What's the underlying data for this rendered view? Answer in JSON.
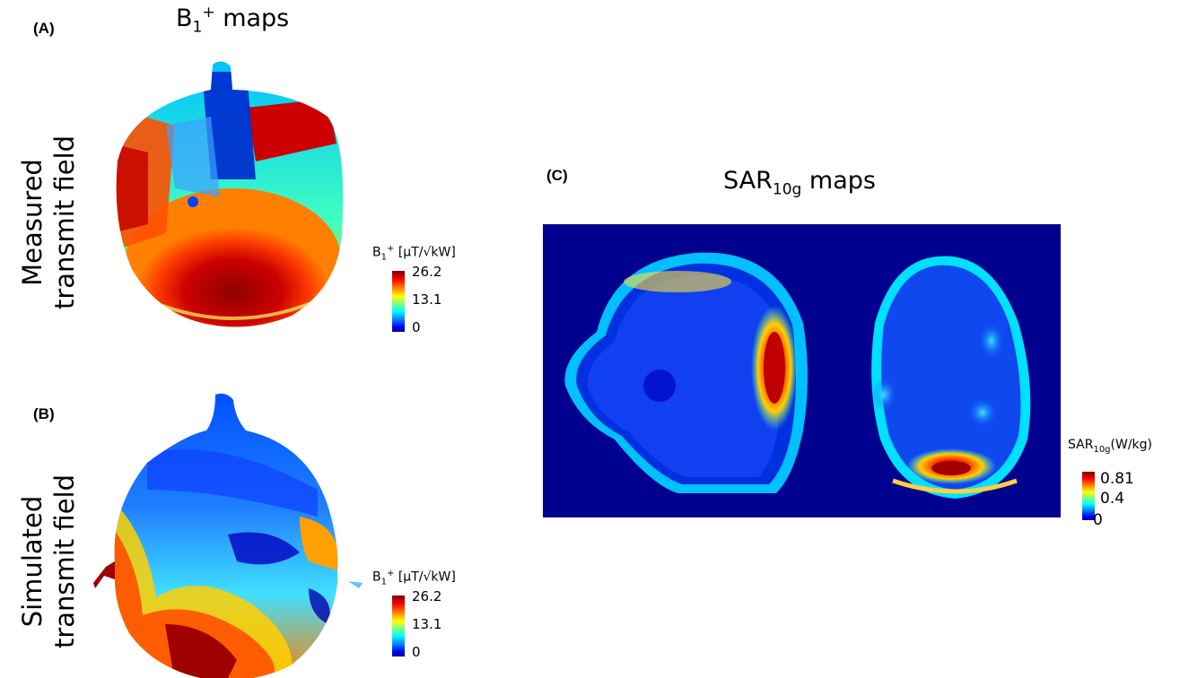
{
  "panel_a": {
    "letter": "(A)",
    "title_base": "B",
    "title_sub": "1",
    "title_sup": "+",
    "title_rest": " maps",
    "row_label_line1": "Measured",
    "row_label_line2": "transmit field",
    "colorbar": {
      "label_base": "B",
      "label_sub": "1",
      "label_sup": "+",
      "label_rest": " [µT/√kW]",
      "ticks": [
        "26.2",
        "13.1",
        "0"
      ]
    }
  },
  "panel_b": {
    "letter": "(B)",
    "row_label_line1": "Simulated",
    "row_label_line2": "transmit field",
    "colorbar": {
      "label_base": "B",
      "label_sub": "1",
      "label_sup": "+",
      "label_rest": " [µT/√kW]",
      "ticks": [
        "26.2",
        "13.1",
        "0"
      ]
    }
  },
  "panel_c": {
    "letter": "(C)",
    "title_base": "SAR",
    "title_sub": "10g",
    "title_rest": " maps",
    "colorbar": {
      "label_base": "SAR",
      "label_sub": "10g",
      "label_rest": "(W/kg)",
      "ticks": [
        "0.81",
        "0.4",
        "0"
      ]
    }
  },
  "colors": {
    "jet_dark_blue": "#00008f",
    "jet_blue": "#0000ff",
    "jet_cyan": "#00ffff",
    "jet_yellow": "#ffff00",
    "jet_red": "#ff0000",
    "jet_dark_red": "#7f0000"
  }
}
